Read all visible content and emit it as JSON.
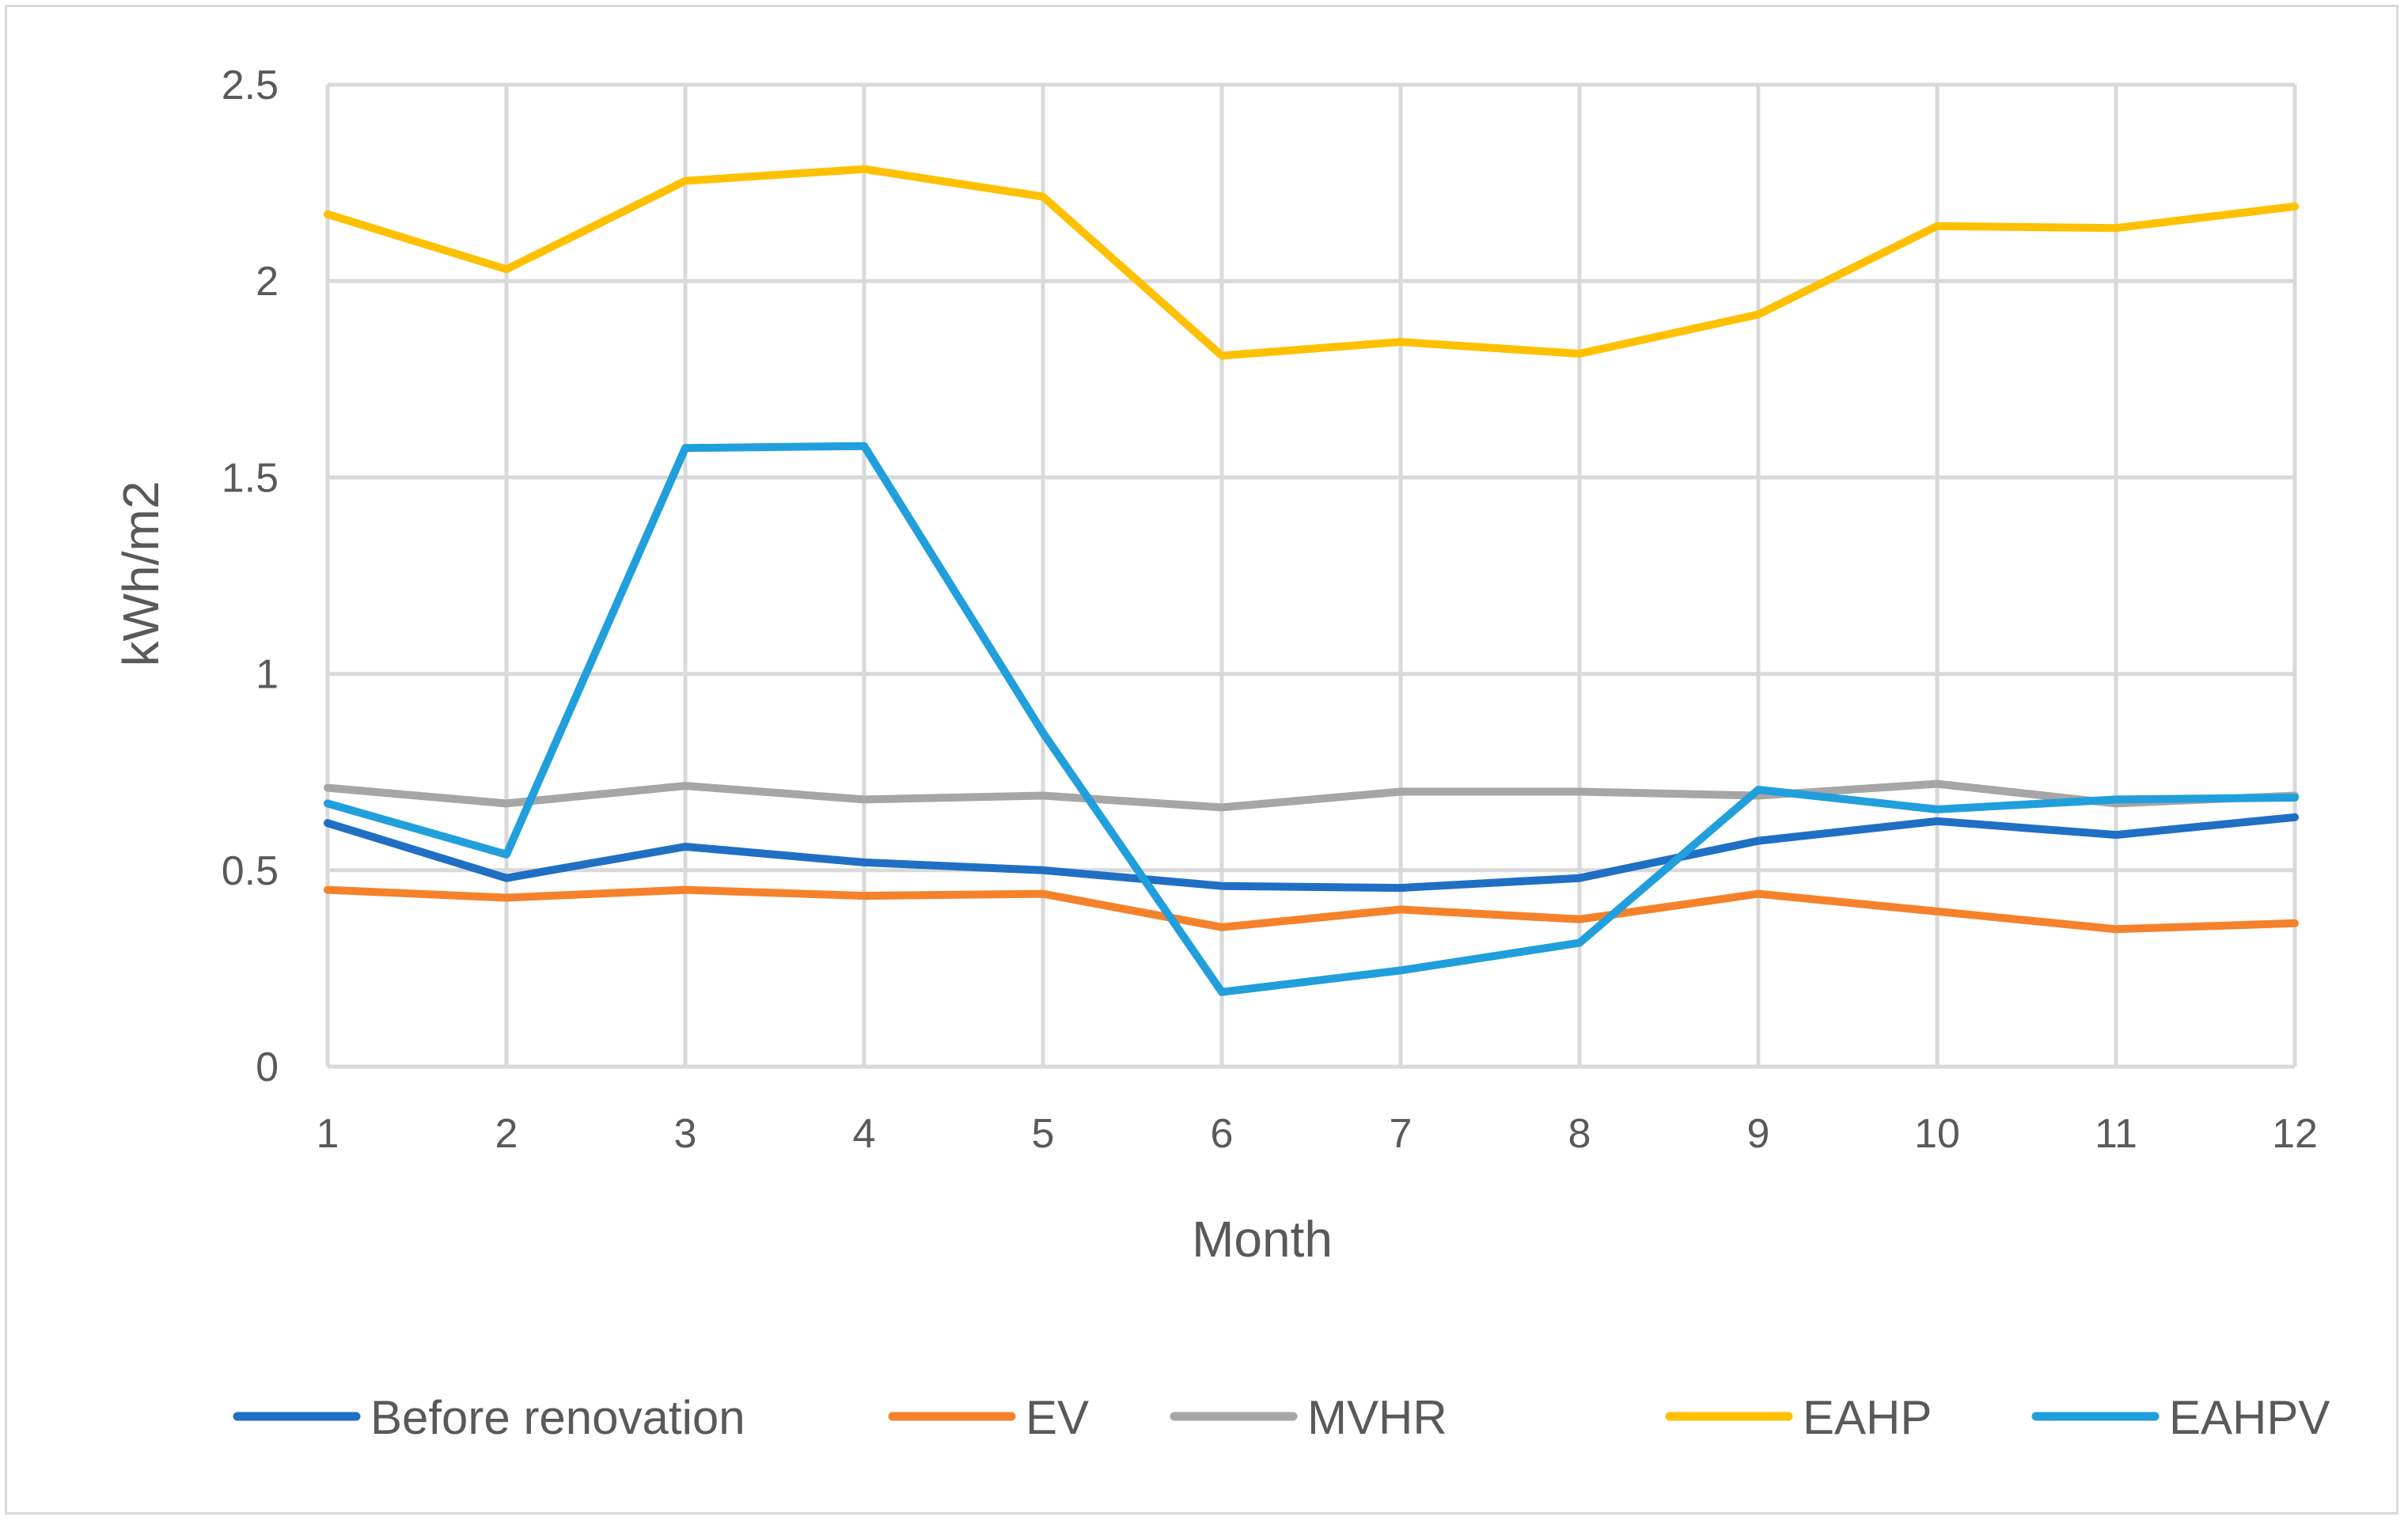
{
  "chart_data": {
    "type": "line",
    "title": "",
    "xlabel": "Month",
    "ylabel": "kWh/m2",
    "x": [
      1,
      2,
      3,
      4,
      5,
      6,
      7,
      8,
      9,
      10,
      11,
      12
    ],
    "xtick_labels": [
      "1",
      "2",
      "3",
      "4",
      "5",
      "6",
      "7",
      "8",
      "9",
      "10",
      "11",
      "12"
    ],
    "ylim": [
      0,
      2.5
    ],
    "yticks": [
      0,
      0.5,
      1,
      1.5,
      2,
      2.5
    ],
    "ytick_labels": [
      "0",
      "0.5",
      "1",
      "1.5",
      "2",
      "2.5"
    ],
    "grid": true,
    "legend_position": "bottom",
    "series": [
      {
        "name": "Before renovation",
        "color": "#1f6fc4",
        "values": [
          0.62,
          0.48,
          0.56,
          0.52,
          0.5,
          0.46,
          0.455,
          0.48,
          0.575,
          0.625,
          0.59,
          0.635
        ]
      },
      {
        "name": "EV",
        "color": "#f5822b",
        "values": [
          0.45,
          0.43,
          0.45,
          0.435,
          0.44,
          0.355,
          0.4,
          0.375,
          0.44,
          0.395,
          0.35,
          0.365
        ]
      },
      {
        "name": "MVHR",
        "color": "#a6a6a6",
        "values": [
          0.71,
          0.67,
          0.715,
          0.68,
          0.69,
          0.66,
          0.7,
          0.7,
          0.69,
          0.72,
          0.67,
          0.69
        ]
      },
      {
        "name": "EAHP",
        "color": "#ffc000",
        "values": [
          2.17,
          2.03,
          2.255,
          2.285,
          2.215,
          1.81,
          1.845,
          1.815,
          1.915,
          2.14,
          2.135,
          2.19
        ]
      },
      {
        "name": "EAHPV",
        "color": "#209fdc",
        "values": [
          0.67,
          0.54,
          1.575,
          1.58,
          0.85,
          0.19,
          0.245,
          0.315,
          0.705,
          0.655,
          0.68,
          0.685
        ]
      }
    ]
  }
}
